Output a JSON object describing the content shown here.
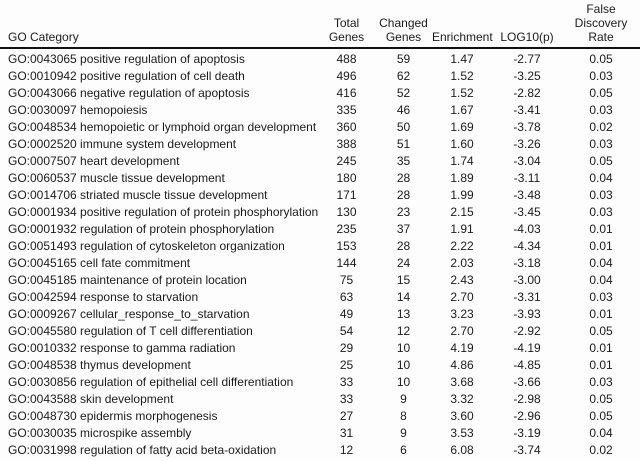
{
  "table": {
    "headers": {
      "go_category": "GO Category",
      "total_genes": "Total\nGenes",
      "changed_genes": "Changed\nGenes",
      "enrichment": "Enrichment",
      "log10p": "LOG10(p)",
      "fdr": "False\nDiscovery\nRate"
    },
    "rows": [
      {
        "category": "GO:0043065 positive regulation of apoptosis",
        "total": "488",
        "changed": "59",
        "enrichment": "1.47",
        "log10p": "-2.77",
        "fdr": "0.05"
      },
      {
        "category": "GO:0010942 positive regulation of cell death",
        "total": "496",
        "changed": "62",
        "enrichment": "1.52",
        "log10p": "-3.25",
        "fdr": "0.03"
      },
      {
        "category": "GO:0043066 negative regulation of apoptosis",
        "total": "416",
        "changed": "52",
        "enrichment": "1.52",
        "log10p": "-2.82",
        "fdr": "0.05"
      },
      {
        "category": "GO:0030097 hemopoiesis",
        "total": "335",
        "changed": "46",
        "enrichment": "1.67",
        "log10p": "-3.41",
        "fdr": "0.03"
      },
      {
        "category": "GO:0048534 hemopoietic or lymphoid organ development",
        "total": "360",
        "changed": "50",
        "enrichment": "1.69",
        "log10p": "-3.78",
        "fdr": "0.02"
      },
      {
        "category": "GO:0002520 immune system development",
        "total": "388",
        "changed": "51",
        "enrichment": "1.60",
        "log10p": "-3.26",
        "fdr": "0.03"
      },
      {
        "category": "GO:0007507 heart development",
        "total": "245",
        "changed": "35",
        "enrichment": "1.74",
        "log10p": "-3.04",
        "fdr": "0.05"
      },
      {
        "category": "GO:0060537 muscle tissue development",
        "total": "180",
        "changed": "28",
        "enrichment": "1.89",
        "log10p": "-3.11",
        "fdr": "0.04"
      },
      {
        "category": "GO:0014706 striated muscle tissue development",
        "total": "171",
        "changed": "28",
        "enrichment": "1.99",
        "log10p": "-3.48",
        "fdr": "0.03"
      },
      {
        "category": "GO:0001934 positive regulation of protein phosphorylation",
        "total": "130",
        "changed": "23",
        "enrichment": "2.15",
        "log10p": "-3.45",
        "fdr": "0.03"
      },
      {
        "category": "GO:0001932 regulation of protein phosphorylation",
        "total": "235",
        "changed": "37",
        "enrichment": "1.91",
        "log10p": "-4.03",
        "fdr": "0.01"
      },
      {
        "category": "GO:0051493 regulation of cytoskeleton organization",
        "total": "153",
        "changed": "28",
        "enrichment": "2.22",
        "log10p": "-4.34",
        "fdr": "0.01"
      },
      {
        "category": "GO:0045165 cell fate commitment",
        "total": "144",
        "changed": "24",
        "enrichment": "2.03",
        "log10p": "-3.18",
        "fdr": "0.04"
      },
      {
        "category": "GO:0045185 maintenance of protein location",
        "total": "75",
        "changed": "15",
        "enrichment": "2.43",
        "log10p": "-3.00",
        "fdr": "0.04"
      },
      {
        "category": "GO:0042594 response to starvation",
        "total": "63",
        "changed": "14",
        "enrichment": "2.70",
        "log10p": "-3.31",
        "fdr": "0.03"
      },
      {
        "category": "GO:0009267 cellular_response_to_starvation",
        "total": "49",
        "changed": "13",
        "enrichment": "3.23",
        "log10p": "-3.93",
        "fdr": "0.01"
      },
      {
        "category": "GO:0045580 regulation of T cell differentiation",
        "total": "54",
        "changed": "12",
        "enrichment": "2.70",
        "log10p": "-2.92",
        "fdr": "0.05"
      },
      {
        "category": "GO:0010332 response to gamma radiation",
        "total": "29",
        "changed": "10",
        "enrichment": "4.19",
        "log10p": "-4.19",
        "fdr": "0.01"
      },
      {
        "category": "GO:0048538 thymus development",
        "total": "25",
        "changed": "10",
        "enrichment": "4.86",
        "log10p": "-4.85",
        "fdr": "0.01"
      },
      {
        "category": "GO:0030856 regulation of epithelial cell differentiation",
        "total": "33",
        "changed": "10",
        "enrichment": "3.68",
        "log10p": "-3.66",
        "fdr": "0.03"
      },
      {
        "category": "GO:0043588 skin development",
        "total": "33",
        "changed": "9",
        "enrichment": "3.32",
        "log10p": "-2.98",
        "fdr": "0.05"
      },
      {
        "category": "GO:0048730 epidermis morphogenesis",
        "total": "27",
        "changed": "8",
        "enrichment": "3.60",
        "log10p": "-2.96",
        "fdr": "0.05"
      },
      {
        "category": "GO:0030035 microspike assembly",
        "total": "31",
        "changed": "9",
        "enrichment": "3.53",
        "log10p": "-3.19",
        "fdr": "0.04"
      },
      {
        "category": "GO:0031998 regulation of fatty acid beta-oxidation",
        "total": "12",
        "changed": "6",
        "enrichment": "6.08",
        "log10p": "-3.74",
        "fdr": "0.02"
      }
    ]
  }
}
